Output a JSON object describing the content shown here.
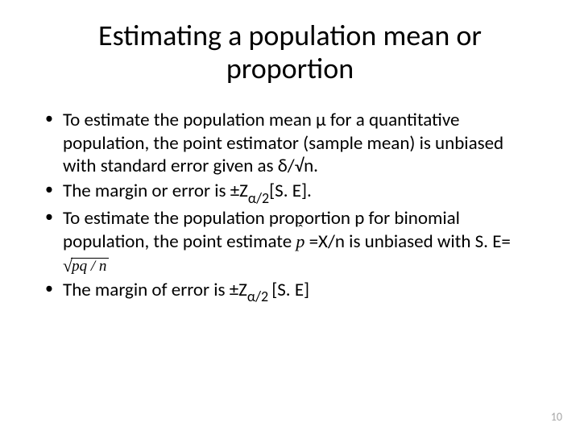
{
  "title_line1": "Estimating a population mean or",
  "title_line2": "proportion",
  "bullets": {
    "b1": "To estimate the population mean μ for a quantitative population, the point estimator (sample mean) is unbiased with standard error given as δ/√n.",
    "b2_pre": "The margin or error is ±Z",
    "b2_sub": "α/2",
    "b2_post": "[S. E].",
    "b3_pre": "To estimate the population proportion p for binomial population, the point estimate ",
    "b3_post": " =X/n is unbiased with S. E=",
    "b4_pre": "The margin of error is ±Z",
    "b4_sub": "α/2 ",
    "b4_post": "[S. E]"
  },
  "formula": {
    "phat": "p",
    "sqrt_arg": "pq / n"
  },
  "page_number": "10",
  "colors": {
    "text": "#000000",
    "background": "#ffffff",
    "page_num": "#a6a6a6"
  },
  "fonts": {
    "body": "Calibri",
    "math": "Times New Roman",
    "title_size_pt": 36,
    "bullet_size_pt": 23
  }
}
